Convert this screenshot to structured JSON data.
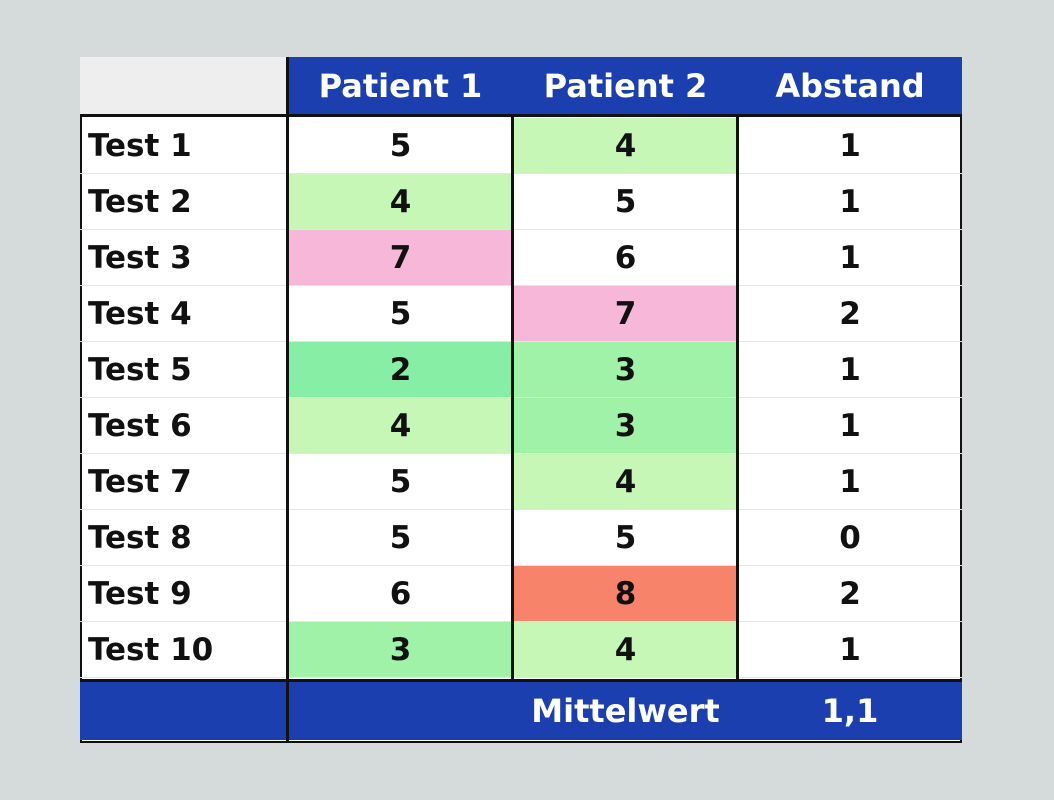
{
  "chart_data": {
    "type": "table",
    "columns": [
      "Patient 1",
      "Patient 2",
      "Abstand"
    ],
    "rows": [
      {
        "label": "Test 1",
        "patient1": "5",
        "patient2": "4",
        "abstand": "1",
        "color1": "#ffffff",
        "color2": "#c6f7b7"
      },
      {
        "label": "Test 2",
        "patient1": "4",
        "patient2": "5",
        "abstand": "1",
        "color1": "#c6f7b7",
        "color2": "#ffffff"
      },
      {
        "label": "Test 3",
        "patient1": "7",
        "patient2": "6",
        "abstand": "1",
        "color1": "#f7b7d9",
        "color2": "#ffffff"
      },
      {
        "label": "Test 4",
        "patient1": "5",
        "patient2": "7",
        "abstand": "2",
        "color1": "#ffffff",
        "color2": "#f7b7d9"
      },
      {
        "label": "Test 5",
        "patient1": "2",
        "patient2": "3",
        "abstand": "1",
        "color1": "#86efa5",
        "color2": "#a0f2a8"
      },
      {
        "label": "Test 6",
        "patient1": "4",
        "patient2": "3",
        "abstand": "1",
        "color1": "#c6f7b7",
        "color2": "#a0f2a8"
      },
      {
        "label": "Test 7",
        "patient1": "5",
        "patient2": "4",
        "abstand": "1",
        "color1": "#ffffff",
        "color2": "#c6f7b7"
      },
      {
        "label": "Test 8",
        "patient1": "5",
        "patient2": "5",
        "abstand": "0",
        "color1": "#ffffff",
        "color2": "#ffffff"
      },
      {
        "label": "Test 9",
        "patient1": "6",
        "patient2": "8",
        "abstand": "2",
        "color1": "#ffffff",
        "color2": "#f7836b"
      },
      {
        "label": "Test 10",
        "patient1": "3",
        "patient2": "4",
        "abstand": "1",
        "color1": "#a0f2a8",
        "color2": "#c6f7b7"
      }
    ],
    "footer": {
      "label": "Mittelwert",
      "value": "1,1"
    },
    "header_color": "#1b3fae"
  }
}
